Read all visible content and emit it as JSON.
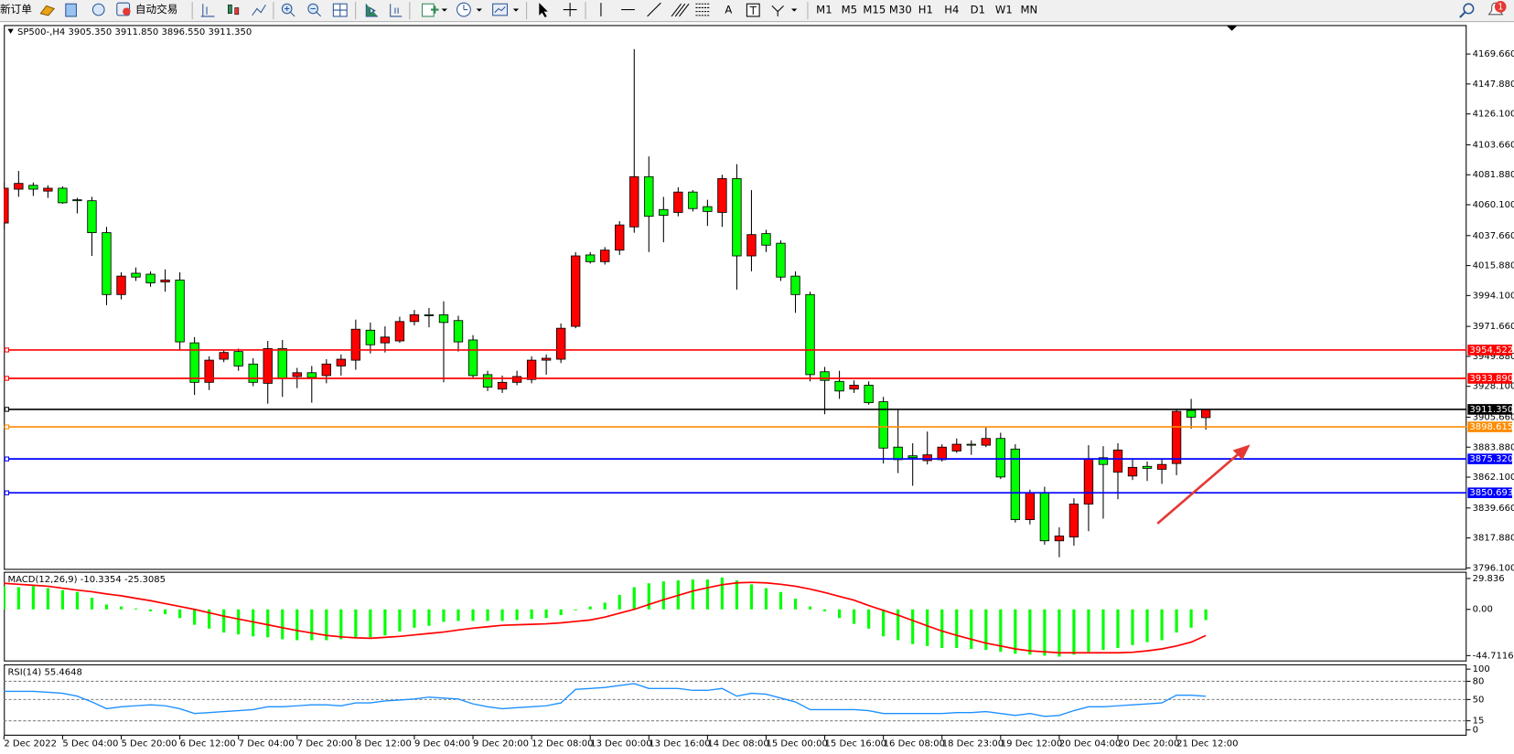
{
  "toolbar": {
    "new_order": "新订单",
    "auto_trading": "自动交易",
    "text_tool": "A",
    "timeframes": [
      "M1",
      "M5",
      "M15",
      "M30",
      "H1",
      "H4",
      "D1",
      "W1",
      "MN"
    ],
    "notifications": "1"
  },
  "chart_data": {
    "type": "candlestick",
    "title": "SP500-,H4  3905.350 3911.850 3896.550 3911.350",
    "open": [
      4046.8,
      4071.4,
      4074.2,
      4070.0,
      4072.1,
      4063.7,
      4063.0,
      4039.8,
      3994.8,
      4010.3,
      4009.6,
      4004.0,
      4005.4,
      3959.7,
      3931.0,
      3947.8,
      3953.4,
      3944.3,
      3930.3,
      3955.5,
      3935.2,
      3938.0,
      3935.9,
      3942.9,
      3947.1,
      3968.9,
      3959.7,
      3961.1,
      3975.2,
      3980.1,
      3980.1,
      3975.9,
      3961.8,
      3936.6,
      3926.1,
      3931.0,
      3933.1,
      3947.1,
      3947.8,
      3971.7,
      4023.6,
      4018.7,
      4027.1,
      4044.0,
      4080.5,
      4056.6,
      4054.5,
      4069.3,
      4058.7,
      4054.5,
      4079.1,
      4022.9,
      4039.1,
      4032.1,
      4008.2,
      3994.8,
      3938.7,
      3931.7,
      3926.1,
      3928.9,
      3916.9,
      3883.9,
      3877.6,
      3874.1,
      3874.8,
      3881.1,
      3886.0,
      3885.3,
      3890.2,
      3882.5,
      3831.2,
      3850.9,
      3815.8,
      3818.6,
      3842.5,
      3876.2,
      3865.7,
      3862.9,
      3869.9,
      3867.8,
      3872.0,
      3910.6,
      3905.35
    ],
    "high": [
      4076.3,
      4084.7,
      4076.3,
      4074.2,
      4073.5,
      4065.1,
      4065.8,
      4044.0,
      4011.0,
      4014.5,
      4011.7,
      4013.1,
      4011.0,
      3963.9,
      3949.9,
      3954.1,
      3955.5,
      3948.5,
      3961.1,
      3961.8,
      3941.5,
      3942.9,
      3947.8,
      3951.3,
      3976.6,
      3974.5,
      3971.7,
      3978.7,
      3983.6,
      3985.0,
      3989.9,
      3979.4,
      3965.3,
      3939.4,
      3935.9,
      3939.4,
      3949.9,
      3951.3,
      3973.8,
      4025.7,
      4025.7,
      4029.3,
      4048.2,
      4173.2,
      4095.2,
      4065.8,
      4072.8,
      4070.7,
      4063.7,
      4081.9,
      4089.6,
      4070.7,
      4041.9,
      4034.2,
      4011.7,
      3996.9,
      3942.2,
      3939.4,
      3932.4,
      3931.7,
      3920.4,
      3911.3,
      3886.7,
      3895.2,
      3886.0,
      3890.2,
      3888.8,
      3898.0,
      3894.4,
      3886.0,
      3853.0,
      3855.1,
      3825.6,
      3846.7,
      3885.3,
      3884.6,
      3886.7,
      3874.8,
      3873.4,
      3874.8,
      3911.3,
      3919.0,
      3911.85
    ],
    "low": [
      4042.6,
      4065.8,
      4066.5,
      4065.1,
      4060.8,
      4053.8,
      4022.9,
      3987.1,
      3991.3,
      4004.7,
      4000.5,
      3996.9,
      3954.1,
      3921.8,
      3925.4,
      3945.7,
      3939.4,
      3928.2,
      3915.5,
      3920.4,
      3926.8,
      3916.2,
      3930.3,
      3935.9,
      3940.1,
      3952.0,
      3952.7,
      3959.7,
      3972.4,
      3971.0,
      3931.0,
      3953.4,
      3934.5,
      3924.7,
      3923.3,
      3928.9,
      3930.3,
      3936.6,
      3945.0,
      3970.3,
      4017.3,
      4016.6,
      4023.6,
      4039.8,
      4025.7,
      4032.8,
      4051.7,
      4055.2,
      4044.7,
      4044.0,
      3998.4,
      4011.7,
      4025.7,
      4004.7,
      3981.5,
      3931.7,
      3907.8,
      3919.0,
      3923.3,
      3914.8,
      3872.0,
      3865.0,
      3855.8,
      3871.3,
      3873.4,
      3879.7,
      3878.3,
      3883.9,
      3860.7,
      3829.1,
      3827.7,
      3813.0,
      3803.9,
      3812.3,
      3822.8,
      3831.9,
      3846.0,
      3860.0,
      3859.3,
      3857.2,
      3863.5,
      3897.3,
      3896.55
    ],
    "close": [
      4072.1,
      4075.6,
      4071.4,
      4072.1,
      4061.5,
      4063.0,
      4039.8,
      3994.8,
      4008.2,
      4007.5,
      4003.3,
      4005.4,
      3960.4,
      3931.0,
      3947.1,
      3952.7,
      3942.9,
      3931.0,
      3955.5,
      3933.8,
      3938.0,
      3934.5,
      3944.3,
      3947.8,
      3969.6,
      3958.3,
      3963.9,
      3975.2,
      3980.1,
      3980.1,
      3974.5,
      3960.4,
      3935.9,
      3927.5,
      3931.0,
      3935.2,
      3947.1,
      3948.5,
      3970.3,
      4022.9,
      4018.7,
      4027.1,
      4045.4,
      4080.5,
      4051.7,
      4052.4,
      4069.3,
      4057.3,
      4055.2,
      4079.1,
      4022.9,
      4038.4,
      4030.7,
      4007.5,
      3994.8,
      3936.6,
      3932.4,
      3924.7,
      3928.9,
      3916.2,
      3883.2,
      3874.8,
      3876.2,
      3878.3,
      3883.9,
      3886.0,
      3886.0,
      3890.2,
      3862.2,
      3831.2,
      3850.9,
      3815.8,
      3819.3,
      3842.5,
      3875.5,
      3871.3,
      3881.8,
      3869.2,
      3868.5,
      3871.3,
      3909.9,
      3905.7,
      3911.35
    ],
    "up_color": "#ff0000",
    "down_color": "#00ff00",
    "ylim": [
      3794.7,
      4190.7
    ],
    "yticks": [
      {
        "value": 4169.66,
        "label": "4169.660"
      },
      {
        "value": 4147.88,
        "label": "4147.880"
      },
      {
        "value": 4126.1,
        "label": "4126.100"
      },
      {
        "value": 4103.66,
        "label": "4103.660"
      },
      {
        "value": 4081.88,
        "label": "4081.880"
      },
      {
        "value": 4060.1,
        "label": "4060.100"
      },
      {
        "value": 4037.66,
        "label": "4037.660"
      },
      {
        "value": 4015.88,
        "label": "4015.880"
      },
      {
        "value": 3994.1,
        "label": "3994.100"
      },
      {
        "value": 3971.66,
        "label": "3971.660"
      },
      {
        "value": 3949.88,
        "label": "3949.880"
      },
      {
        "value": 3928.1,
        "label": "3928.100"
      },
      {
        "value": 3905.66,
        "label": "3905.660"
      },
      {
        "value": 3883.88,
        "label": "3883.880"
      },
      {
        "value": 3862.1,
        "label": "3862.100"
      },
      {
        "value": 3839.66,
        "label": "3839.660"
      },
      {
        "value": 3817.88,
        "label": "3817.880"
      },
      {
        "value": 3796.1,
        "label": "3796.100"
      }
    ],
    "levels": [
      {
        "value": 3954.522,
        "color": "#ff0000"
      },
      {
        "value": 3933.89,
        "label": "3933.890",
        "color": "#ff0000"
      },
      {
        "value": 3911.35,
        "label": "3911.350",
        "color": "#000000"
      },
      {
        "value": 3898.615,
        "color": "#ff8c00"
      },
      {
        "value": 3875.32,
        "label": "3875.320",
        "color": "#0000ff"
      },
      {
        "value": 3850.693,
        "color": "#0000ff"
      }
    ],
    "x_labels": [
      "2 Dec 2022",
      "5 Dec 04:00",
      "5 Dec 20:00",
      "6 Dec 12:00",
      "7 Dec 04:00",
      "7 Dec 20:00",
      "8 Dec 12:00",
      "9 Dec 04:00",
      "9 Dec 20:00",
      "12 Dec 08:00",
      "13 Dec 00:00",
      "13 Dec 16:00",
      "14 Dec 08:00",
      "15 Dec 00:00",
      "15 Dec 16:00",
      "16 Dec 08:00",
      "18 Dec 23:00",
      "19 Dec 12:00",
      "20 Dec 04:00",
      "20 Dec 20:00",
      "21 Dec 12:00"
    ],
    "macd": {
      "title": "MACD(12,26,9) -10.3354 -25.3085",
      "histogram": [
        22.4,
        21.4,
        22.4,
        20.5,
        18.6,
        16.8,
        11.2,
        4.7,
        2.8,
        0.9,
        -1.9,
        -4.7,
        -8.4,
        -14.9,
        -18.6,
        -22.4,
        -24.2,
        -26.1,
        -27.0,
        -28.9,
        -29.8,
        -29.8,
        -29.8,
        -28.9,
        -28.0,
        -27.0,
        -25.2,
        -21.4,
        -17.7,
        -15.9,
        -12.1,
        -11.2,
        -11.2,
        -11.2,
        -11.2,
        -10.3,
        -9.3,
        -8.4,
        -5.6,
        -0.9,
        2.8,
        6.5,
        14.0,
        21.4,
        25.2,
        27.0,
        28.0,
        28.9,
        28.9,
        30.8,
        28.0,
        24.2,
        20.5,
        16.8,
        10.3,
        2.8,
        -1.9,
        -8.4,
        -14.0,
        -18.6,
        -26.1,
        -29.8,
        -33.6,
        -35.4,
        -37.3,
        -37.3,
        -38.2,
        -39.2,
        -41.0,
        -42.9,
        -43.8,
        -44.8,
        -45.7,
        -43.8,
        -41.0,
        -39.2,
        -37.3,
        -34.5,
        -31.7,
        -29.8,
        -22.4,
        -17.7,
        -10.3354
      ],
      "signal": [
        25.2,
        24.2,
        23.3,
        22.4,
        20.5,
        18.6,
        17.1,
        14.9,
        13.1,
        10.7,
        8.4,
        5.6,
        2.8,
        0,
        -3.3,
        -6.5,
        -9.3,
        -12.1,
        -14.9,
        -17.7,
        -20.5,
        -22.8,
        -25.2,
        -26.6,
        -27.5,
        -28.0,
        -27.0,
        -26.1,
        -24.7,
        -23.3,
        -21.9,
        -20.0,
        -18.2,
        -16.8,
        -15.4,
        -14.9,
        -14.5,
        -14.0,
        -13.1,
        -11.7,
        -10.3,
        -7.5,
        -3.7,
        0,
        4.7,
        9.3,
        13.5,
        17.7,
        21.0,
        23.8,
        25.6,
        26.1,
        25.6,
        24.2,
        22.4,
        19.6,
        16.3,
        12.6,
        8.9,
        3.7,
        -0.9,
        -5.6,
        -10.7,
        -15.9,
        -21.0,
        -25.2,
        -28.9,
        -32.6,
        -35.4,
        -38.2,
        -40.1,
        -41.0,
        -42.0,
        -42.0,
        -42.0,
        -42.0,
        -42.0,
        -41.5,
        -40.1,
        -38.2,
        -35.4,
        -31.7,
        -25.3085
      ],
      "histogram_color": "#00ff00",
      "signal_color": "#ff0000",
      "ylim": [
        -50.35,
        36.36
      ],
      "yticks": [
        29.836,
        {
          "value": 0,
          "label": "0.00"
        },
        -44.7116
      ]
    },
    "rsi": {
      "title": "RSI(14) 55.4648",
      "values": [
        63.5,
        63.5,
        63.5,
        61.9,
        60.3,
        55.5,
        46.0,
        34.9,
        38.1,
        39.7,
        41.3,
        39.7,
        34.9,
        27.0,
        28.6,
        30.2,
        31.7,
        33.3,
        38.1,
        38.1,
        39.7,
        41.3,
        41.3,
        39.7,
        44.4,
        44.4,
        47.6,
        49.2,
        50.8,
        54.0,
        52.4,
        50.8,
        42.8,
        38.1,
        34.9,
        36.5,
        38.1,
        39.7,
        44.4,
        66.7,
        68.2,
        69.8,
        73.0,
        76.2,
        68.2,
        68.2,
        68.2,
        65.1,
        65.1,
        68.2,
        55.5,
        60.3,
        58.7,
        52.4,
        46.0,
        33.3,
        33.3,
        33.3,
        33.3,
        31.7,
        27.0,
        27.0,
        27.0,
        27.0,
        27.0,
        28.6,
        28.6,
        30.2,
        27.0,
        23.8,
        27.0,
        22.2,
        23.8,
        31.7,
        38.1,
        38.1,
        39.7,
        41.3,
        42.8,
        44.4,
        57.1,
        57.1,
        55.4648
      ],
      "color": "#1e90ff",
      "ylim": [
        -9.5,
        107.9
      ],
      "yticks": [
        100,
        80,
        50,
        15,
        0
      ],
      "levels": [
        80,
        50,
        15
      ]
    }
  }
}
